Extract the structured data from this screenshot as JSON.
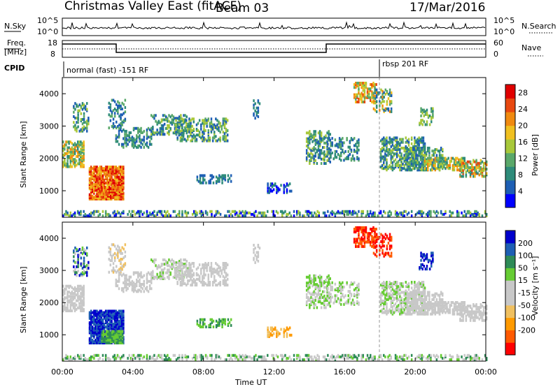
{
  "header": {
    "station": "Christmas Valley East (fitACF)",
    "beam": "Beam 03",
    "date": "17/Mar/2016"
  },
  "nsky_panel": {
    "left_label": "N.Sky",
    "right_label": "N.Search",
    "right_ticks": [
      "10^5",
      "10^0"
    ],
    "left_ticks": [
      "10^5",
      "10^0"
    ]
  },
  "freq_panel": {
    "left_label_1": "Freq.",
    "left_label_2": "[MHz]",
    "left_ticks": [
      "18",
      "8"
    ],
    "right_label": "Nave",
    "right_ticks": [
      "60",
      "0"
    ]
  },
  "cpid": {
    "label": "CPID",
    "mode_1": "normal (fast) -151 RF",
    "mode_2": "rbsp 201 RF"
  },
  "chart_data": [
    {
      "type": "heatmap",
      "name": "power",
      "ylabel": "Slant Range [km]",
      "xlabel": "Time UT",
      "xlim": [
        "00:00",
        "24:00"
      ],
      "ylim": [
        180,
        4500
      ],
      "yticks": [
        "1000",
        "2000",
        "3000",
        "4000"
      ],
      "xticks": [
        "00:00",
        "04:00",
        "08:00",
        "12:00",
        "16:00",
        "20:00",
        "00:00"
      ],
      "colorbar": {
        "label": "Power [dB]",
        "range": [
          0,
          30
        ],
        "ticks": [
          "4",
          "8",
          "12",
          "16",
          "20",
          "24",
          "28"
        ]
      },
      "grid": false
    },
    {
      "type": "heatmap",
      "name": "velocity",
      "ylabel": "Slant Range [km]",
      "xlabel": "Time UT",
      "xlim": [
        "00:00",
        "24:00"
      ],
      "ylim": [
        180,
        4500
      ],
      "yticks": [
        "1000",
        "2000",
        "3000",
        "4000"
      ],
      "xticks": [
        "00:00",
        "04:00",
        "08:00",
        "12:00",
        "16:00",
        "20:00",
        "00:00"
      ],
      "colorbar": {
        "label": "Velocity [m s⁻¹]",
        "ticks": [
          "200",
          "100",
          "50",
          "15",
          "-15",
          "-50",
          "-100",
          "-200"
        ]
      },
      "grid": false
    }
  ],
  "x_axis_title": "Time UT",
  "colors": {
    "power_scale": [
      "#0000ff",
      "#1e5fb4",
      "#2e8b7a",
      "#5aa86a",
      "#a8c83a",
      "#f0c020",
      "#f08a10",
      "#e84810",
      "#e00000"
    ],
    "velocity_scale": [
      "#ff0000",
      "#ff5a00",
      "#ff9a00",
      "#f0c060",
      "#c8c8c8",
      "#c8c8c8",
      "#66cc33",
      "#2e8b57",
      "#1e5fb4",
      "#0000cc"
    ]
  }
}
